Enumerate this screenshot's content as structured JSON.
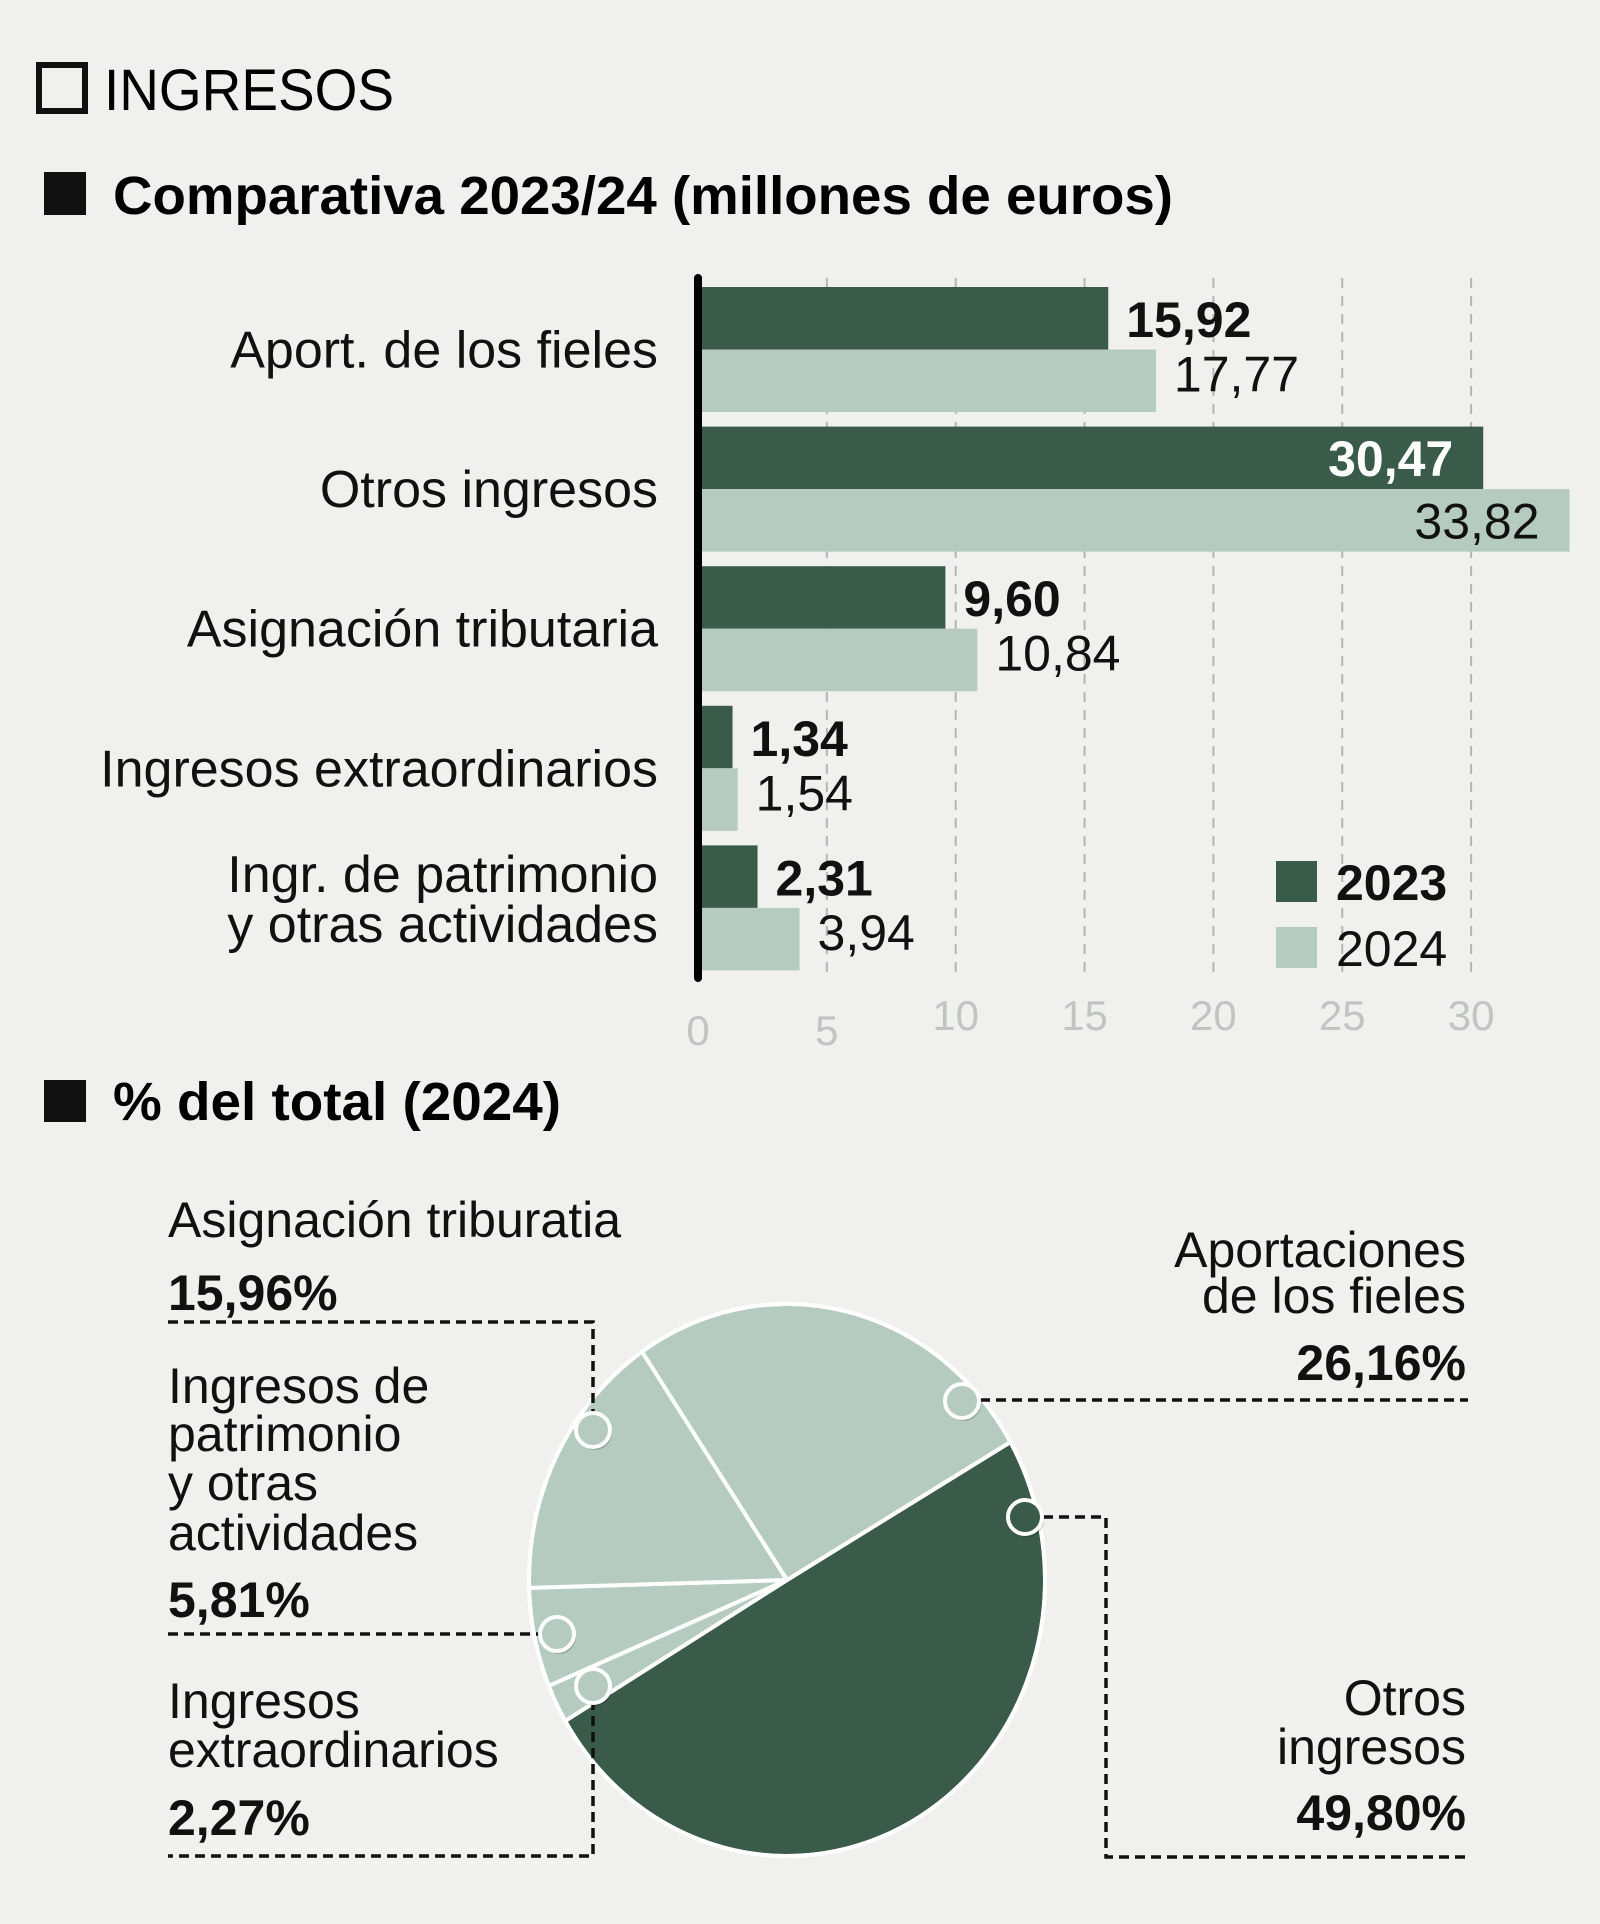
{
  "header": {
    "section_title": "INGRESOS",
    "bar_section_title": "Comparativa 2023/24 (millones de euros)",
    "pie_section_title": "% del total (2024)"
  },
  "colors": {
    "background": "#f0f0ee",
    "series_2023": "#3a5a4a",
    "series_2024": "#b5cbbf",
    "axis": "#000000",
    "grid": "#b3b6b5",
    "tick_label": "#c2c4c3",
    "text": "#111111"
  },
  "legend": {
    "items": [
      {
        "label": "2023",
        "bold": true
      },
      {
        "label": "2024",
        "bold": false
      }
    ]
  },
  "chart_data": [
    {
      "type": "bar",
      "orientation": "horizontal",
      "title": "Comparativa 2023/24 (millones de euros)",
      "xlabel": "",
      "ylabel": "",
      "xlim": [
        0,
        34
      ],
      "xticks": [
        0,
        5,
        10,
        15,
        20,
        25,
        30
      ],
      "grid": "vertical dashed",
      "legend_position": "bottom-right inside",
      "categories": [
        [
          "Aport. de los fieles"
        ],
        [
          "Otros ingresos"
        ],
        [
          "Asignación tributaria"
        ],
        [
          "Ingresos extraordinarios"
        ],
        [
          "Ingr. de patrimonio",
          "y otras actividades"
        ]
      ],
      "series": [
        {
          "name": "2023",
          "values": [
            15.92,
            30.47,
            9.6,
            1.34,
            2.31
          ],
          "labels": [
            "15,92",
            "30,47",
            "9,60",
            "1,34",
            "2,31"
          ]
        },
        {
          "name": "2024",
          "values": [
            17.77,
            33.82,
            10.84,
            1.54,
            3.94
          ],
          "labels": [
            "17,77",
            "33,82",
            "10,84",
            "1,54",
            "3,94"
          ]
        }
      ]
    },
    {
      "type": "pie",
      "title": "% del total (2024)",
      "slices": [
        {
          "label": [
            "Otros",
            "ingresos"
          ],
          "value": 49.8,
          "display": "49,80%",
          "color": "#3a5a4a"
        },
        {
          "label": [
            "Aportaciones",
            "de los fieles"
          ],
          "value": 26.16,
          "display": "26,16%",
          "color": "#b5cbbf"
        },
        {
          "label": [
            "Asignación triburatia"
          ],
          "value": 15.96,
          "display": "15,96%",
          "color": "#b5cbbf"
        },
        {
          "label": [
            "Ingresos de",
            "patrimonio",
            "y otras",
            "actividades"
          ],
          "value": 5.81,
          "display": "5,81%",
          "color": "#b5cbbf"
        },
        {
          "label": [
            "Ingresos",
            "extraordinarios"
          ],
          "value": 2.27,
          "display": "2,27%",
          "color": "#b5cbbf"
        }
      ]
    }
  ]
}
